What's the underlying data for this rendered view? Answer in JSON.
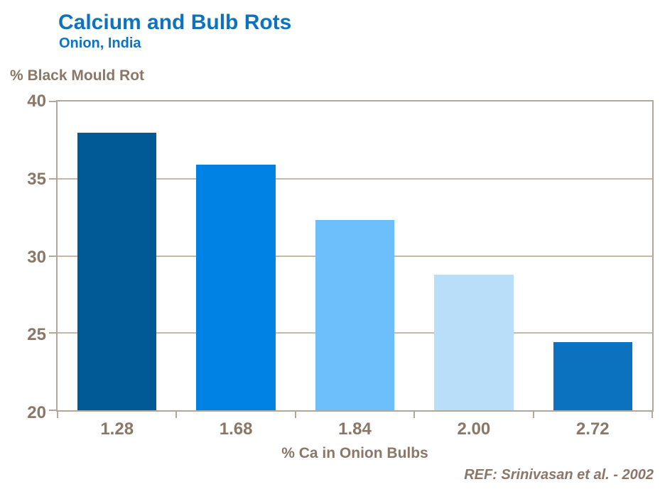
{
  "header": {
    "title": "Calcium and Bulb Rots",
    "subtitle": "Onion, India"
  },
  "chart_data": {
    "type": "bar",
    "title": "Calcium and Bulb Rots",
    "subtitle": "Onion, India",
    "categories": [
      "1.28",
      "1.68",
      "1.84",
      "2.00",
      "2.72"
    ],
    "values": [
      38.0,
      35.9,
      32.3,
      28.8,
      24.4
    ],
    "bar_colors": [
      "#005A96",
      "#0082E4",
      "#6DBFFB",
      "#B9DEFA",
      "#0A72BF"
    ],
    "xlabel": "% Ca in Onion Bulbs",
    "ylabel": "% Black Mould Rot",
    "ylim": [
      20,
      40
    ],
    "yticks": [
      "40",
      "35",
      "30",
      "25",
      "20"
    ],
    "grid": true,
    "legend": false
  },
  "footer": {
    "reference": "REF: Srinivasan et al. - 2002"
  },
  "colors": {
    "title_blue": "#0E73BE",
    "axis_text": "#8A7767",
    "axis_line": "#B2A79B",
    "gridline": "#C4B8AA"
  }
}
